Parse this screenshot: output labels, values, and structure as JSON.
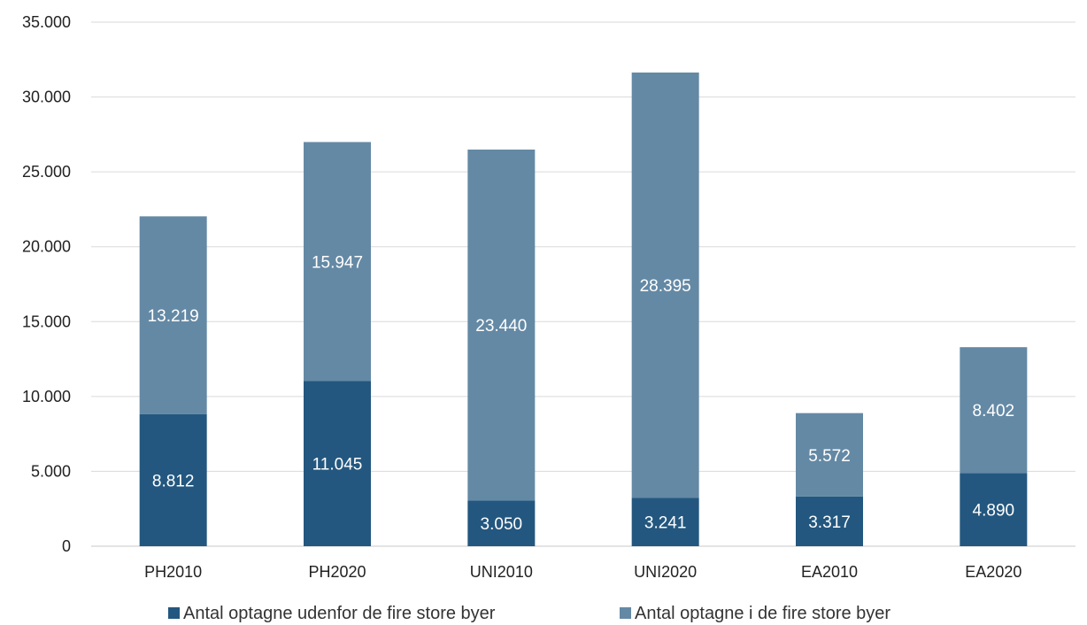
{
  "chart_data": {
    "type": "bar",
    "stacked": true,
    "title": "",
    "xlabel": "",
    "ylabel": "",
    "categories": [
      "PH2010",
      "PH2020",
      "UNI2010",
      "UNI2020",
      "EA2010",
      "EA2020"
    ],
    "ylim": [
      0,
      35000
    ],
    "yticks": [
      0,
      5000,
      10000,
      15000,
      20000,
      25000,
      30000,
      35000
    ],
    "ytick_labels": [
      "0",
      "5.000",
      "10.000",
      "15.000",
      "20.000",
      "25.000",
      "30.000",
      "35.000"
    ],
    "grid": true,
    "legend_position": "bottom",
    "series": [
      {
        "name": "Antal optagne udenfor de fire store byer",
        "color": "#23577f",
        "values": [
          8812,
          11045,
          3050,
          3241,
          3317,
          4890
        ],
        "labels": [
          "8.812",
          "11.045",
          "3.050",
          "3.241",
          "3.317",
          "4.890"
        ]
      },
      {
        "name": "Antal optagne i de fire store byer",
        "color": "#6489a5",
        "values": [
          13219,
          15947,
          23440,
          28395,
          5572,
          8402
        ],
        "labels": [
          "13.219",
          "15.947",
          "23.440",
          "28.395",
          "5.572",
          "8.402"
        ]
      }
    ]
  }
}
